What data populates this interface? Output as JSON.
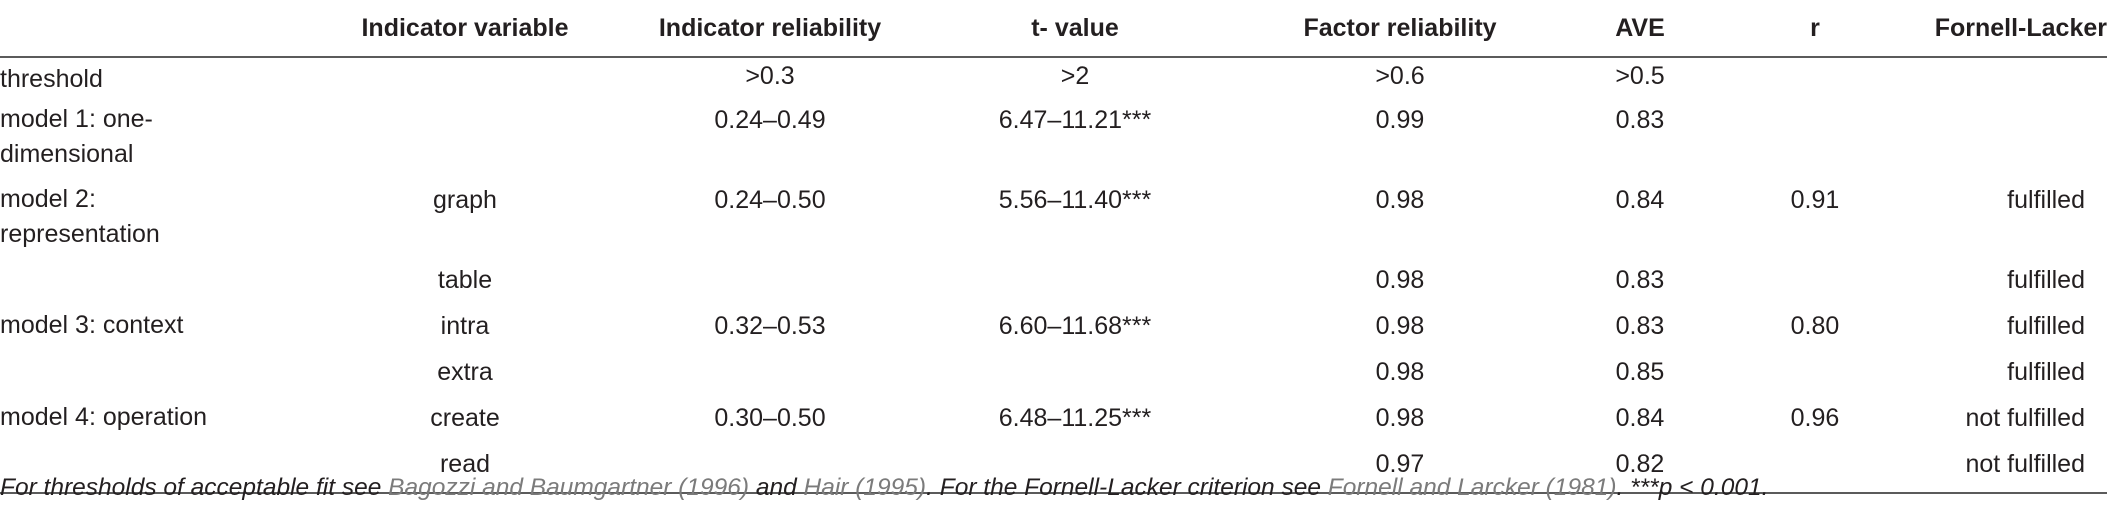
{
  "header": {
    "col0": "",
    "col1": "Indicator variable",
    "col2": "Indicator reliability",
    "col3": "t- value",
    "col4": "Factor reliability",
    "col5": "AVE",
    "col6": "r",
    "col7": "Fornell-Lacker"
  },
  "rows": [
    {
      "label": "threshold",
      "indicator": "",
      "reliability": ">0.3",
      "t": ">2",
      "factor": ">0.6",
      "ave": ">0.5",
      "r": "",
      "fl": ""
    },
    {
      "label": "model 1: one-dimensional",
      "indicator": "",
      "reliability": "0.24–0.49",
      "t": "6.47–11.21***",
      "factor": "0.99",
      "ave": "0.83",
      "r": "",
      "fl": ""
    },
    {
      "label": "model 2: representation",
      "indicator": "graph",
      "reliability": "0.24–0.50",
      "t": "5.56–11.40***",
      "factor": "0.98",
      "ave": "0.84",
      "r": "0.91",
      "fl": "fulfilled"
    },
    {
      "label": "",
      "indicator": "table",
      "reliability": "",
      "t": "",
      "factor": "0.98",
      "ave": "0.83",
      "r": "",
      "fl": "fulfilled"
    },
    {
      "label": "model 3: context",
      "indicator": "intra",
      "reliability": "0.32–0.53",
      "t": "6.60–11.68***",
      "factor": "0.98",
      "ave": "0.83",
      "r": "0.80",
      "fl": "fulfilled"
    },
    {
      "label": "",
      "indicator": "extra",
      "reliability": "",
      "t": "",
      "factor": "0.98",
      "ave": "0.85",
      "r": "",
      "fl": "fulfilled"
    },
    {
      "label": "model 4: operation",
      "indicator": "create",
      "reliability": "0.30–0.50",
      "t": "6.48–11.25***",
      "factor": "0.98",
      "ave": "0.84",
      "r": "0.96",
      "fl": "not fulfilled"
    },
    {
      "label": "",
      "indicator": "read",
      "reliability": "",
      "t": "",
      "factor": "0.97",
      "ave": "0.82",
      "r": "",
      "fl": "not fulfilled"
    }
  ],
  "footnote": {
    "part1": "For thresholds of acceptable fit see ",
    "ref1": "Bagozzi and Baumgartner (1996)",
    "part2": " and ",
    "ref2": "Hair (1995)",
    "part3": ". For the Fornell-Lacker criterion see ",
    "ref3": "Fornell and Larcker (1981)",
    "part4": ". ***p < 0.001."
  },
  "colors": {
    "text": "#231f20",
    "reference": "#7b7b7b",
    "rule": "#5b5b5b"
  }
}
